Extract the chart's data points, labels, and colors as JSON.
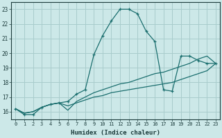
{
  "xlabel": "Humidex (Indice chaleur)",
  "xlim": [
    -0.5,
    23.5
  ],
  "ylim": [
    15.5,
    23.5
  ],
  "yticks": [
    16,
    17,
    18,
    19,
    20,
    21,
    22,
    23
  ],
  "xticks": [
    0,
    1,
    2,
    3,
    4,
    5,
    6,
    7,
    8,
    9,
    10,
    11,
    12,
    13,
    14,
    15,
    16,
    17,
    18,
    19,
    20,
    21,
    22,
    23
  ],
  "bg_color": "#cce8e8",
  "grid_color": "#a8cccc",
  "line_color": "#1a6e6e",
  "series": [
    {
      "x": [
        0,
        1,
        2,
        3,
        4,
        5,
        6,
        7,
        8,
        9,
        10,
        11,
        12,
        13,
        14,
        15,
        16,
        17,
        18,
        19,
        20,
        21,
        22,
        23
      ],
      "y": [
        16.2,
        15.8,
        15.8,
        16.3,
        16.5,
        16.6,
        16.7,
        17.2,
        17.5,
        19.9,
        21.2,
        22.2,
        23.0,
        23.0,
        22.7,
        21.5,
        20.8,
        17.5,
        17.4,
        19.8,
        19.8,
        19.5,
        19.3,
        19.3
      ],
      "marker": "+"
    },
    {
      "x": [
        0,
        1,
        2,
        3,
        4,
        5,
        6,
        7,
        8,
        9,
        10,
        11,
        12,
        13,
        14,
        15,
        16,
        17,
        18,
        19,
        20,
        21,
        22,
        23
      ],
      "y": [
        16.2,
        15.9,
        16.0,
        16.3,
        16.5,
        16.6,
        16.1,
        16.7,
        17.0,
        17.3,
        17.5,
        17.7,
        17.9,
        18.0,
        18.2,
        18.4,
        18.6,
        18.7,
        18.9,
        19.1,
        19.3,
        19.6,
        19.8,
        19.3
      ],
      "marker": null
    },
    {
      "x": [
        0,
        1,
        2,
        3,
        4,
        5,
        6,
        7,
        8,
        9,
        10,
        11,
        12,
        13,
        14,
        15,
        16,
        17,
        18,
        19,
        20,
        21,
        22,
        23
      ],
      "y": [
        16.2,
        15.9,
        16.0,
        16.3,
        16.5,
        16.6,
        16.4,
        16.6,
        16.8,
        17.0,
        17.1,
        17.3,
        17.4,
        17.5,
        17.6,
        17.7,
        17.8,
        17.9,
        18.0,
        18.2,
        18.4,
        18.6,
        18.8,
        19.3
      ],
      "marker": null
    }
  ]
}
